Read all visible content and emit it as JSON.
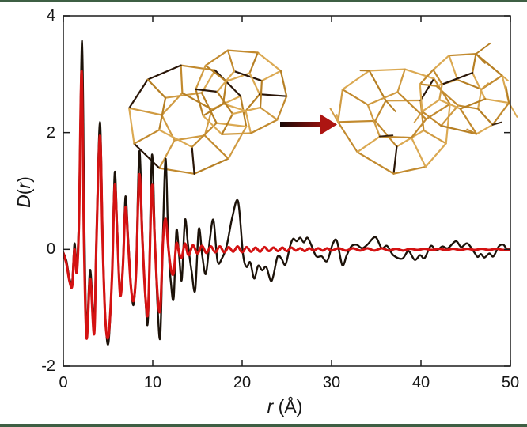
{
  "figure": {
    "background": "#ffffff",
    "frame_line_color": "#3e5f44",
    "insets": {
      "left_structure": "ordered-fused-cage-wireframe",
      "right_structure": "disordered-fused-cage-wireframe",
      "wireframe_color": "#c28a2e",
      "arrow_start_color": "#190a07",
      "arrow_end_color": "#ad1512"
    }
  },
  "chart_data": {
    "type": "line",
    "title": "",
    "xlabel_runs": [
      {
        "text": "r"
      },
      {
        "text": " (Å)"
      }
    ],
    "ylabel_runs": [
      {
        "text": "D"
      },
      {
        "text": "("
      },
      {
        "text": "r"
      },
      {
        "text": ")"
      }
    ],
    "xlim": [
      0,
      50
    ],
    "ylim": [
      -2,
      4
    ],
    "x_ticks": [
      0,
      10,
      20,
      30,
      40,
      50
    ],
    "y_ticks": [
      4,
      2,
      0,
      -2
    ],
    "x_tick_labels": [
      "0",
      "10",
      "20",
      "30",
      "40",
      "50"
    ],
    "y_tick_labels": [
      "4",
      "2",
      "0",
      "-2"
    ],
    "grid": false,
    "legend_position": "none",
    "axis_color": "#1c1c1c",
    "series": [
      {
        "name": "black",
        "color": "#1c1209",
        "stroke_width": 2.4,
        "points": [
          [
            0,
            -0.05
          ],
          [
            0.35,
            -0.2
          ],
          [
            0.7,
            -0.5
          ],
          [
            1.0,
            -0.55
          ],
          [
            1.25,
            0.1
          ],
          [
            1.5,
            -0.25
          ],
          [
            1.75,
            0.6
          ],
          [
            2.1,
            3.57
          ],
          [
            2.35,
            0.5
          ],
          [
            2.6,
            -1.35
          ],
          [
            3.0,
            -0.35
          ],
          [
            3.45,
            -1.25
          ],
          [
            3.7,
            0.2
          ],
          [
            4.1,
            2.18
          ],
          [
            4.4,
            0.25
          ],
          [
            4.7,
            -1.15
          ],
          [
            5.05,
            -1.6
          ],
          [
            5.45,
            -0.4
          ],
          [
            5.75,
            1.32
          ],
          [
            6.05,
            0.28
          ],
          [
            6.35,
            -0.72
          ],
          [
            6.65,
            -0.3
          ],
          [
            6.95,
            0.9
          ],
          [
            7.25,
            0.2
          ],
          [
            7.55,
            -0.58
          ],
          [
            7.85,
            -0.95
          ],
          [
            8.15,
            -0.3
          ],
          [
            8.5,
            1.68
          ],
          [
            8.85,
            0.25
          ],
          [
            9.2,
            -0.9
          ],
          [
            9.5,
            -1.12
          ],
          [
            9.9,
            1.6
          ],
          [
            10.25,
            0.15
          ],
          [
            10.55,
            -1.0
          ],
          [
            10.85,
            -1.48
          ],
          [
            11.15,
            0.3
          ],
          [
            11.45,
            1.55
          ],
          [
            11.75,
            0.1
          ],
          [
            12.05,
            -0.6
          ],
          [
            12.35,
            -0.82
          ],
          [
            12.65,
            0.32
          ],
          [
            12.95,
            -0.1
          ],
          [
            13.25,
            -0.52
          ],
          [
            13.6,
            0.5
          ],
          [
            13.95,
            0.08
          ],
          [
            14.35,
            -0.38
          ],
          [
            14.75,
            -0.7
          ],
          [
            15.15,
            0.35
          ],
          [
            15.55,
            -0.12
          ],
          [
            15.95,
            -0.42
          ],
          [
            16.4,
            0.18
          ],
          [
            16.8,
            0.5
          ],
          [
            17.25,
            -0.2
          ],
          [
            17.75,
            -0.15
          ],
          [
            18.3,
            0.08
          ],
          [
            18.9,
            0.55
          ],
          [
            19.55,
            0.82
          ],
          [
            20.1,
            -0.08
          ],
          [
            20.5,
            -0.3
          ],
          [
            20.9,
            -0.22
          ],
          [
            21.35,
            -0.5
          ],
          [
            21.8,
            -0.28
          ],
          [
            22.25,
            -0.36
          ],
          [
            22.7,
            -0.3
          ],
          [
            23.3,
            -0.54
          ],
          [
            23.95,
            -0.13
          ],
          [
            24.4,
            -0.16
          ],
          [
            24.85,
            -0.26
          ],
          [
            25.35,
            0.05
          ],
          [
            25.7,
            0.18
          ],
          [
            26.1,
            0.14
          ],
          [
            26.5,
            0.2
          ],
          [
            26.9,
            0.12
          ],
          [
            27.3,
            0.2
          ],
          [
            27.8,
            0.05
          ],
          [
            28.3,
            -0.12
          ],
          [
            28.9,
            -0.12
          ],
          [
            29.5,
            -0.2
          ],
          [
            30.15,
            0.1
          ],
          [
            30.6,
            0.14
          ],
          [
            31.2,
            -0.27
          ],
          [
            31.7,
            -0.1
          ],
          [
            32.2,
            0.05
          ],
          [
            32.8,
            0.08
          ],
          [
            33.4,
            0.02
          ],
          [
            34.0,
            0.08
          ],
          [
            34.9,
            0.21
          ],
          [
            35.6,
            0.02
          ],
          [
            36.2,
            0.06
          ],
          [
            36.9,
            -0.1
          ],
          [
            37.9,
            -0.16
          ],
          [
            38.6,
            -0.03
          ],
          [
            39.3,
            -0.18
          ],
          [
            39.9,
            -0.1
          ],
          [
            40.4,
            -0.15
          ],
          [
            41.1,
            0.06
          ],
          [
            41.7,
            -0.02
          ],
          [
            42.4,
            0.05
          ],
          [
            43.0,
            0.02
          ],
          [
            43.9,
            0.14
          ],
          [
            44.5,
            0.04
          ],
          [
            45.2,
            0.1
          ],
          [
            46.0,
            -0.06
          ],
          [
            46.35,
            -0.13
          ],
          [
            46.7,
            -0.08
          ],
          [
            47.1,
            -0.14
          ],
          [
            47.65,
            -0.07
          ],
          [
            48.1,
            -0.12
          ],
          [
            48.7,
            0.05
          ],
          [
            49.2,
            0.08
          ],
          [
            49.65,
            0.0
          ],
          [
            50,
            0.01
          ]
        ]
      },
      {
        "name": "red",
        "color": "#d41212",
        "stroke_width": 3.1,
        "points": [
          [
            0,
            -0.06
          ],
          [
            0.35,
            -0.25
          ],
          [
            0.7,
            -0.55
          ],
          [
            1.0,
            -0.62
          ],
          [
            1.25,
            0.0
          ],
          [
            1.5,
            -0.4
          ],
          [
            1.75,
            0.45
          ],
          [
            2.05,
            3.05
          ],
          [
            2.3,
            0.25
          ],
          [
            2.6,
            -1.52
          ],
          [
            3.0,
            -0.5
          ],
          [
            3.45,
            -1.45
          ],
          [
            3.7,
            0.1
          ],
          [
            4.1,
            1.95
          ],
          [
            4.4,
            0.12
          ],
          [
            4.7,
            -1.2
          ],
          [
            5.05,
            -1.48
          ],
          [
            5.45,
            -0.45
          ],
          [
            5.75,
            1.1
          ],
          [
            6.05,
            0.18
          ],
          [
            6.35,
            -0.78
          ],
          [
            6.65,
            -0.35
          ],
          [
            6.95,
            0.72
          ],
          [
            7.25,
            0.1
          ],
          [
            7.55,
            -0.62
          ],
          [
            7.85,
            -0.88
          ],
          [
            8.15,
            -0.35
          ],
          [
            8.5,
            1.28
          ],
          [
            8.85,
            0.15
          ],
          [
            9.2,
            -0.85
          ],
          [
            9.5,
            -1.0
          ],
          [
            9.9,
            1.08
          ],
          [
            10.25,
            0.08
          ],
          [
            10.55,
            -0.8
          ],
          [
            10.85,
            -1.02
          ],
          [
            11.15,
            0.15
          ],
          [
            11.45,
            0.52
          ],
          [
            11.75,
            0.02
          ],
          [
            12.05,
            -0.35
          ],
          [
            12.35,
            -0.4
          ],
          [
            12.65,
            0.1
          ],
          [
            12.95,
            -0.06
          ],
          [
            13.25,
            -0.14
          ],
          [
            13.6,
            0.1
          ],
          [
            14.0,
            -0.1
          ],
          [
            14.5,
            0.07
          ],
          [
            15.0,
            -0.07
          ],
          [
            15.5,
            0.06
          ],
          [
            16.0,
            -0.06
          ],
          [
            16.5,
            0.05
          ],
          [
            17.0,
            -0.05
          ],
          [
            17.5,
            0.05
          ],
          [
            18.0,
            -0.05
          ],
          [
            18.5,
            0.04
          ],
          [
            19.0,
            -0.04
          ],
          [
            19.5,
            0.05
          ],
          [
            20.0,
            -0.05
          ],
          [
            20.5,
            0.04
          ],
          [
            21.0,
            -0.04
          ],
          [
            21.5,
            0.03
          ],
          [
            22.0,
            -0.04
          ],
          [
            22.5,
            0.04
          ],
          [
            23.0,
            -0.03
          ],
          [
            23.5,
            0.03
          ],
          [
            24.0,
            -0.03
          ],
          [
            24.5,
            0.03
          ],
          [
            25.0,
            -0.03
          ],
          [
            25.5,
            0.03
          ],
          [
            26.0,
            -0.02
          ],
          [
            26.5,
            0.02
          ],
          [
            27.0,
            -0.03
          ],
          [
            27.5,
            0.02
          ],
          [
            28.0,
            -0.02
          ],
          [
            28.5,
            0.02
          ],
          [
            29.0,
            -0.02
          ],
          [
            29.5,
            0.02
          ],
          [
            30.0,
            -0.02
          ],
          [
            30.8,
            0.02
          ],
          [
            31.6,
            -0.02
          ],
          [
            32.4,
            0.02
          ],
          [
            33.2,
            -0.02
          ],
          [
            34.0,
            0.02
          ],
          [
            34.8,
            -0.02
          ],
          [
            35.6,
            0.02
          ],
          [
            36.4,
            -0.02
          ],
          [
            37.2,
            0.01
          ],
          [
            38.0,
            -0.02
          ],
          [
            38.8,
            0.01
          ],
          [
            39.6,
            -0.01
          ],
          [
            40.4,
            0.01
          ],
          [
            41.2,
            -0.01
          ],
          [
            42.0,
            0.01
          ],
          [
            42.8,
            -0.01
          ],
          [
            43.6,
            0.01
          ],
          [
            44.4,
            -0.01
          ],
          [
            45.2,
            0.01
          ],
          [
            46.0,
            -0.01
          ],
          [
            46.8,
            0.01
          ],
          [
            47.6,
            -0.01
          ],
          [
            48.4,
            0.01
          ],
          [
            49.2,
            -0.01
          ],
          [
            50,
            0.0
          ]
        ]
      }
    ]
  }
}
